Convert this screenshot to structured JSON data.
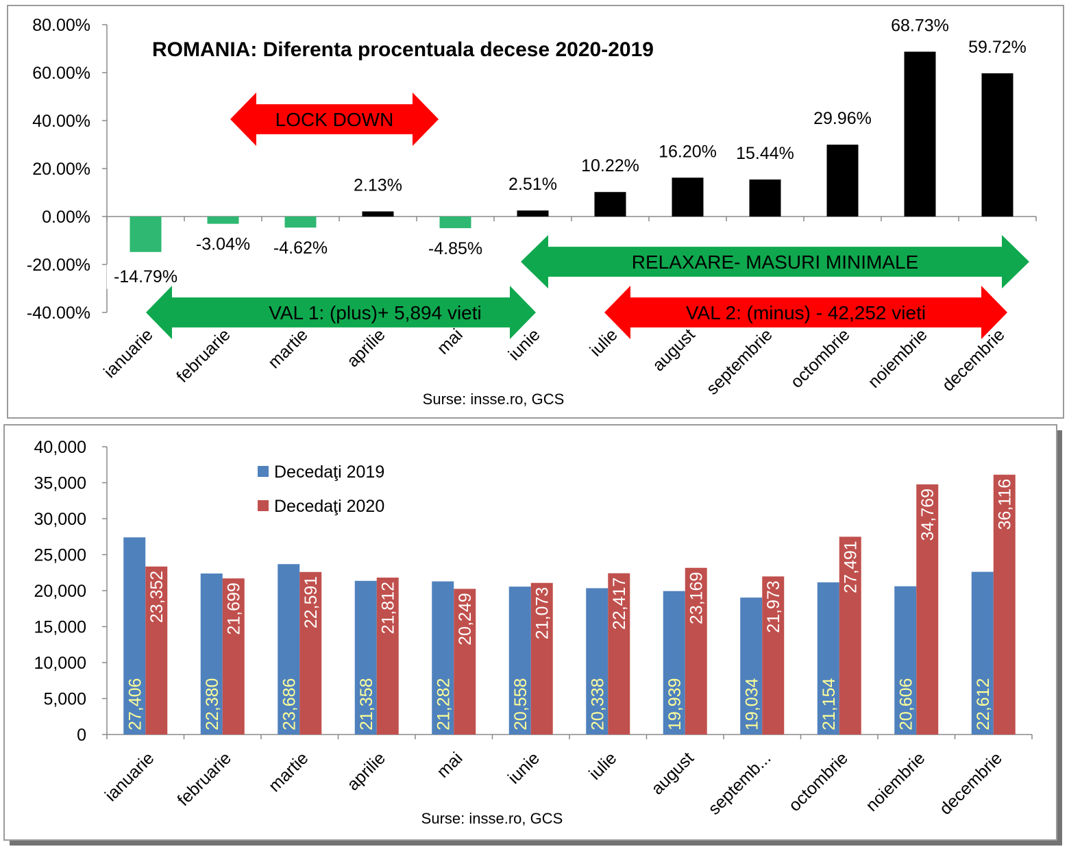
{
  "colors": {
    "pos_bar": "#000000",
    "neg_bar": "#2eb872",
    "series2019": "#4f81bd",
    "series2020": "#c0504d",
    "arrow_green": "#0fa84e",
    "arrow_red": "#ff0000",
    "in_bar_label_2019": "#ffff99",
    "in_bar_label_2020": "#ffffff"
  },
  "chart_data": [
    {
      "type": "bar",
      "title": "ROMANIA: Diferenta procentuala decese 2020-2019",
      "source": "Surse: insse.ro, GCS",
      "categories": [
        "ianuarie",
        "februarie",
        "martie",
        "aprilie",
        "mai",
        "iunie",
        "iulie",
        "august",
        "septembrie",
        "octombrie",
        "noiembrie",
        "decembrie"
      ],
      "values": [
        -14.79,
        -3.04,
        -4.62,
        2.13,
        -4.85,
        2.51,
        10.22,
        16.2,
        15.44,
        29.96,
        68.73,
        59.72
      ],
      "value_labels": [
        "-14.79%",
        "-3.04%",
        "-4.62%",
        "2.13%",
        "-4.85%",
        "2.51%",
        "10.22%",
        "16.20%",
        "15.44%",
        "29.96%",
        "68.73%",
        "59.72%"
      ],
      "ylim": [
        -40,
        80
      ],
      "yticks": [
        80,
        60,
        40,
        20,
        0,
        -20,
        -40
      ],
      "ytick_labels": [
        "80.00%",
        "60.00%",
        "40.00%",
        "20.00%",
        "0.00%",
        "-20.00%",
        "-40.00%"
      ],
      "grid": false,
      "annotations": [
        {
          "text": "LOCK DOWN",
          "color": "red",
          "from_category": "februarie",
          "to_category": "aprilie",
          "y": 40
        },
        {
          "text": "RELAXARE- MASURI MINIMALE",
          "color": "green",
          "from_category": "iunie",
          "to_category": "decembrie",
          "y": -20
        },
        {
          "text": "VAL 1: (plus)+ 5,894 vieti",
          "color": "green",
          "from_category": "ianuarie",
          "to_category": "iunie",
          "y": -40
        },
        {
          "text": "VAL 2: (minus) - 42,252 vieti",
          "color": "red",
          "from_category": "iulie",
          "to_category": "decembrie",
          "y": -40
        }
      ]
    },
    {
      "type": "bar",
      "source": "Surse: insse.ro, GCS",
      "categories": [
        "ianuarie",
        "februarie",
        "martie",
        "aprilie",
        "mai",
        "iunie",
        "iulie",
        "august",
        "septemb...",
        "octombrie",
        "noiembrie",
        "decembrie"
      ],
      "series": [
        {
          "name": "Decedaţi 2019",
          "values": [
            27406,
            22380,
            23686,
            21358,
            21282,
            20558,
            20338,
            19939,
            19034,
            21154,
            20606,
            22612
          ],
          "value_labels": [
            "27,406",
            "22,380",
            "23,686",
            "21,358",
            "21,282",
            "20,558",
            "20,338",
            "19,939",
            "19,034",
            "21,154",
            "20,606",
            "22,612"
          ]
        },
        {
          "name": "Decedaţi 2020",
          "values": [
            23352,
            21699,
            22591,
            21812,
            20249,
            21073,
            22417,
            23169,
            21973,
            27491,
            34769,
            36116
          ],
          "value_labels": [
            "23,352",
            "21,699",
            "22,591",
            "21,812",
            "20,249",
            "21,073",
            "22,417",
            "23,169",
            "21,973",
            "27,491",
            "34,769",
            "36,116"
          ]
        }
      ],
      "ylim": [
        0,
        40000
      ],
      "yticks": [
        40000,
        35000,
        30000,
        25000,
        20000,
        15000,
        10000,
        5000,
        0
      ],
      "ytick_labels": [
        "40,000",
        "35,000",
        "30,000",
        "25,000",
        "20,000",
        "15,000",
        "10,000",
        "5,000",
        "0"
      ],
      "legend": "top-left",
      "grid": false
    }
  ]
}
